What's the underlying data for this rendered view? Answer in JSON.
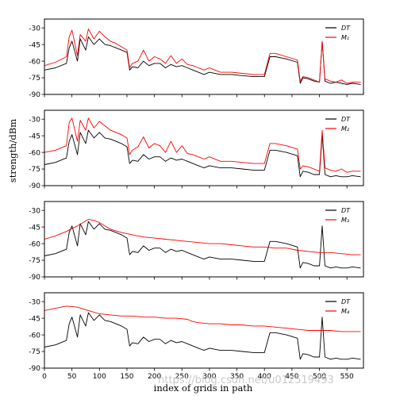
{
  "chart_data": [
    {
      "type": "line",
      "ylim": [
        -90,
        -22
      ],
      "xlim": [
        0,
        580
      ],
      "yticks": [
        -30,
        -45,
        -60,
        -75,
        -90
      ],
      "grid": false,
      "legend_position": "top-right",
      "series": [
        {
          "name": "DT",
          "color": "#000000",
          "x": [
            0,
            20,
            40,
            45,
            50,
            60,
            65,
            75,
            80,
            90,
            100,
            110,
            120,
            130,
            140,
            150,
            155,
            160,
            170,
            180,
            190,
            200,
            210,
            220,
            230,
            240,
            250,
            260,
            270,
            280,
            290,
            300,
            320,
            340,
            360,
            380,
            400,
            410,
            420,
            440,
            460,
            465,
            470,
            480,
            490,
            500,
            505,
            510,
            520,
            530,
            540,
            550,
            560,
            575
          ],
          "y": [
            -68,
            -66,
            -62,
            -48,
            -42,
            -60,
            -40,
            -50,
            -38,
            -45,
            -40,
            -45,
            -46,
            -48,
            -50,
            -52,
            -68,
            -65,
            -66,
            -60,
            -64,
            -62,
            -62,
            -66,
            -63,
            -65,
            -64,
            -66,
            -68,
            -70,
            -72,
            -70,
            -72,
            -72,
            -73,
            -74,
            -74,
            -56,
            -56,
            -58,
            -61,
            -80,
            -75,
            -76,
            -78,
            -79,
            -42,
            -78,
            -80,
            -79,
            -80,
            -81,
            -80,
            -81
          ]
        },
        {
          "name": "M₁",
          "color": "#ff0000",
          "x": [
            0,
            20,
            40,
            45,
            50,
            60,
            65,
            75,
            80,
            90,
            100,
            110,
            120,
            130,
            140,
            150,
            155,
            160,
            170,
            180,
            190,
            200,
            210,
            220,
            230,
            240,
            250,
            260,
            270,
            280,
            290,
            300,
            320,
            340,
            360,
            380,
            400,
            410,
            420,
            440,
            460,
            465,
            470,
            480,
            490,
            500,
            505,
            510,
            520,
            530,
            540,
            550,
            560,
            575
          ],
          "y": [
            -64,
            -61,
            -56,
            -38,
            -32,
            -55,
            -36,
            -42,
            -31,
            -40,
            -33,
            -38,
            -42,
            -44,
            -47,
            -50,
            -66,
            -62,
            -60,
            -50,
            -60,
            -56,
            -58,
            -62,
            -55,
            -62,
            -58,
            -63,
            -64,
            -66,
            -68,
            -66,
            -70,
            -70,
            -71,
            -72,
            -72,
            -53,
            -53,
            -56,
            -59,
            -78,
            -74,
            -75,
            -77,
            -79,
            -42,
            -76,
            -78,
            -79,
            -77,
            -80,
            -79,
            -79
          ]
        }
      ]
    },
    {
      "type": "line",
      "ylim": [
        -90,
        -22
      ],
      "xlim": [
        0,
        580
      ],
      "yticks": [
        -30,
        -45,
        -60,
        -75,
        -90
      ],
      "grid": false,
      "legend_position": "top-right",
      "series": [
        {
          "name": "DT",
          "color": "#000000",
          "x": [
            0,
            20,
            40,
            45,
            50,
            60,
            65,
            75,
            80,
            90,
            100,
            110,
            120,
            130,
            140,
            150,
            155,
            160,
            170,
            180,
            190,
            200,
            210,
            220,
            230,
            240,
            250,
            260,
            270,
            280,
            290,
            300,
            320,
            340,
            360,
            380,
            400,
            410,
            420,
            440,
            460,
            465,
            470,
            480,
            490,
            500,
            505,
            510,
            520,
            530,
            540,
            550,
            560,
            575
          ],
          "y": [
            -71,
            -69,
            -65,
            -50,
            -44,
            -62,
            -42,
            -52,
            -40,
            -47,
            -42,
            -47,
            -48,
            -50,
            -52,
            -55,
            -70,
            -67,
            -68,
            -62,
            -66,
            -64,
            -64,
            -68,
            -65,
            -67,
            -66,
            -68,
            -70,
            -72,
            -74,
            -72,
            -74,
            -74,
            -75,
            -76,
            -76,
            -58,
            -58,
            -60,
            -63,
            -82,
            -77,
            -78,
            -80,
            -80,
            -44,
            -80,
            -82,
            -81,
            -82,
            -82,
            -81,
            -82
          ]
        },
        {
          "name": "M₂",
          "color": "#ff0000",
          "x": [
            0,
            20,
            40,
            45,
            50,
            60,
            65,
            75,
            80,
            90,
            100,
            110,
            120,
            130,
            140,
            150,
            155,
            160,
            170,
            180,
            190,
            200,
            210,
            220,
            230,
            240,
            250,
            260,
            270,
            280,
            290,
            300,
            320,
            340,
            360,
            380,
            400,
            410,
            420,
            440,
            460,
            465,
            470,
            480,
            490,
            500,
            505,
            510,
            520,
            530,
            540,
            550,
            560,
            575
          ],
          "y": [
            -60,
            -58,
            -54,
            -33,
            -29,
            -50,
            -31,
            -40,
            -29,
            -38,
            -32,
            -36,
            -40,
            -42,
            -44,
            -47,
            -62,
            -58,
            -55,
            -46,
            -56,
            -52,
            -54,
            -60,
            -50,
            -60,
            -54,
            -61,
            -62,
            -64,
            -66,
            -64,
            -68,
            -68,
            -69,
            -70,
            -70,
            -52,
            -52,
            -54,
            -57,
            -75,
            -72,
            -73,
            -75,
            -77,
            -40,
            -74,
            -76,
            -77,
            -75,
            -78,
            -77,
            -77
          ]
        }
      ]
    },
    {
      "type": "line",
      "ylim": [
        -90,
        -22
      ],
      "xlim": [
        0,
        580
      ],
      "yticks": [
        -30,
        -45,
        -60,
        -75,
        -90
      ],
      "grid": false,
      "legend_position": "top-right",
      "series": [
        {
          "name": "DT",
          "color": "#000000",
          "x": [
            0,
            20,
            40,
            45,
            50,
            60,
            65,
            75,
            80,
            90,
            100,
            110,
            120,
            130,
            140,
            150,
            155,
            160,
            170,
            180,
            190,
            200,
            210,
            220,
            230,
            240,
            250,
            260,
            270,
            280,
            290,
            300,
            320,
            340,
            360,
            380,
            400,
            410,
            420,
            440,
            460,
            465,
            470,
            480,
            490,
            500,
            505,
            510,
            520,
            530,
            540,
            550,
            560,
            575
          ],
          "y": [
            -71,
            -69,
            -65,
            -50,
            -44,
            -62,
            -42,
            -52,
            -40,
            -47,
            -42,
            -47,
            -48,
            -50,
            -52,
            -55,
            -70,
            -67,
            -68,
            -62,
            -66,
            -64,
            -64,
            -68,
            -65,
            -67,
            -66,
            -68,
            -70,
            -72,
            -74,
            -72,
            -74,
            -74,
            -75,
            -76,
            -76,
            -58,
            -58,
            -60,
            -63,
            -82,
            -77,
            -78,
            -80,
            -80,
            -44,
            -80,
            -82,
            -81,
            -82,
            -82,
            -81,
            -82
          ]
        },
        {
          "name": "M₃",
          "color": "#ff0000",
          "x": [
            0,
            20,
            40,
            60,
            80,
            90,
            100,
            110,
            120,
            140,
            160,
            180,
            200,
            220,
            240,
            260,
            280,
            300,
            320,
            340,
            360,
            380,
            400,
            420,
            440,
            460,
            480,
            500,
            520,
            540,
            560,
            575
          ],
          "y": [
            -56,
            -53,
            -49,
            -44,
            -38,
            -39,
            -41,
            -44,
            -47,
            -50,
            -52,
            -54,
            -55,
            -56,
            -57,
            -58,
            -59,
            -60,
            -60,
            -61,
            -62,
            -63,
            -63,
            -64,
            -64,
            -66,
            -67,
            -68,
            -68,
            -69,
            -70,
            -70
          ]
        }
      ]
    },
    {
      "type": "line",
      "ylim": [
        -90,
        -22
      ],
      "xlim": [
        0,
        580
      ],
      "yticks": [
        -30,
        -45,
        -60,
        -75,
        -90
      ],
      "grid": false,
      "legend_position": "top-right",
      "series": [
        {
          "name": "DT",
          "color": "#000000",
          "x": [
            0,
            20,
            40,
            45,
            50,
            60,
            65,
            75,
            80,
            90,
            100,
            110,
            120,
            130,
            140,
            150,
            155,
            160,
            170,
            180,
            190,
            200,
            210,
            220,
            230,
            240,
            250,
            260,
            270,
            280,
            290,
            300,
            320,
            340,
            360,
            380,
            400,
            410,
            420,
            440,
            460,
            465,
            470,
            480,
            490,
            500,
            505,
            510,
            520,
            530,
            540,
            550,
            560,
            575
          ],
          "y": [
            -71,
            -69,
            -65,
            -50,
            -44,
            -62,
            -42,
            -52,
            -40,
            -47,
            -42,
            -47,
            -48,
            -50,
            -52,
            -55,
            -70,
            -67,
            -68,
            -62,
            -66,
            -64,
            -64,
            -68,
            -65,
            -67,
            -66,
            -68,
            -70,
            -72,
            -74,
            -72,
            -74,
            -74,
            -75,
            -76,
            -76,
            -58,
            -58,
            -60,
            -63,
            -82,
            -77,
            -78,
            -80,
            -80,
            -44,
            -80,
            -82,
            -81,
            -82,
            -82,
            -81,
            -82
          ]
        },
        {
          "name": "M₄",
          "color": "#ff0000",
          "x": [
            0,
            20,
            40,
            60,
            80,
            100,
            120,
            140,
            160,
            180,
            200,
            220,
            240,
            260,
            270,
            280,
            300,
            320,
            340,
            360,
            380,
            400,
            420,
            440,
            460,
            480,
            500,
            520,
            540,
            560,
            575
          ],
          "y": [
            -38,
            -36,
            -34,
            -35,
            -38,
            -41,
            -42,
            -43,
            -43,
            -44,
            -44,
            -45,
            -45,
            -46,
            -48,
            -49,
            -50,
            -50,
            -51,
            -51,
            -52,
            -52,
            -53,
            -54,
            -55,
            -56,
            -56,
            -56,
            -57,
            -57,
            -57
          ]
        }
      ]
    }
  ],
  "axes": {
    "ylabel": "strength/dBm",
    "xlabel": "index of grids in path",
    "xticks": [
      0,
      50,
      100,
      150,
      200,
      250,
      300,
      350,
      400,
      450,
      500,
      550
    ]
  },
  "watermark": "https://blog.csdn.net/u012519493"
}
